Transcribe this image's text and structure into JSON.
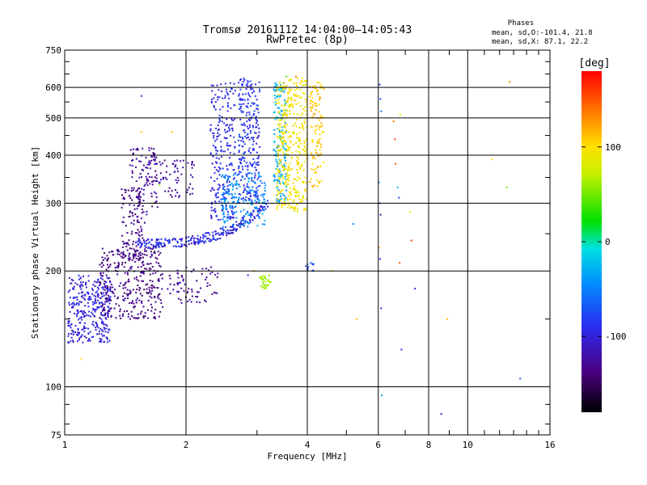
{
  "chart_data": {
    "type": "scatter",
    "title": "Tromsø 20161112 14:04:00–14:05:43",
    "subtitle": "RwPretec (8p)",
    "xlabel": "Frequency [MHz]",
    "ylabel": "Stationary phase Virtual Height [km]",
    "x_scale": "log",
    "y_scale": "log",
    "xlim": [
      1,
      16
    ],
    "ylim": [
      75,
      750
    ],
    "grid": true,
    "x_ticks": [
      {
        "value": 1,
        "label": "1"
      },
      {
        "value": 2,
        "label": "2"
      },
      {
        "value": 4,
        "label": "4"
      },
      {
        "value": 6,
        "label": "6"
      },
      {
        "value": 8,
        "label": "8"
      },
      {
        "value": 10,
        "label": "10"
      },
      {
        "value": 16,
        "label": "16"
      }
    ],
    "y_ticks": [
      {
        "value": 75,
        "label": "75"
      },
      {
        "value": 100,
        "label": "100"
      },
      {
        "value": 200,
        "label": "200"
      },
      {
        "value": 300,
        "label": "300"
      },
      {
        "value": 400,
        "label": "400"
      },
      {
        "value": 500,
        "label": "500"
      },
      {
        "value": 600,
        "label": "600"
      },
      {
        "value": 750,
        "label": "750"
      }
    ],
    "stats": {
      "header": "Phases",
      "line1": "mean, sd,O:-101.4, 21.8",
      "line2": "mean, sd,X:  87.1, 22.2"
    },
    "colorbar": {
      "label": "[deg]",
      "range": [
        -180,
        180
      ],
      "ticks": [
        {
          "value": 100,
          "label": "100"
        },
        {
          "value": 0,
          "label": "0"
        },
        {
          "value": -100,
          "label": "-100"
        }
      ]
    },
    "clusters": [
      {
        "name": "low-freq blue",
        "f": [
          1.02,
          1.3
        ],
        "h": [
          130,
          195
        ],
        "phase": [
          -120,
          -95
        ],
        "n": 320
      },
      {
        "name": "low-freq violet",
        "f": [
          1.22,
          1.75
        ],
        "h": [
          150,
          230
        ],
        "phase": [
          -150,
          -125
        ],
        "n": 330
      },
      {
        "name": "violet column",
        "f": [
          1.38,
          1.58
        ],
        "h": [
          210,
          330
        ],
        "phase": [
          -150,
          -125
        ],
        "n": 120
      },
      {
        "name": "violet column 2",
        "f": [
          1.45,
          1.7
        ],
        "h": [
          280,
          420
        ],
        "phase": [
          -145,
          -120
        ],
        "n": 90
      },
      {
        "name": "violet upper",
        "f": [
          1.55,
          2.1
        ],
        "h": [
          310,
          390
        ],
        "phase": [
          -140,
          -115
        ],
        "n": 80
      },
      {
        "name": "trace curve",
        "f": [
          1.5,
          3.2
        ],
        "h": [
          235,
          300
        ],
        "phase": [
          -125,
          -85
        ],
        "n": 260
      },
      {
        "name": "blue column 1",
        "f": [
          2.3,
          2.65
        ],
        "h": [
          270,
          620
        ],
        "phase": [
          -115,
          -90
        ],
        "n": 230
      },
      {
        "name": "blue column 2",
        "f": [
          2.7,
          3.05
        ],
        "h": [
          300,
          640
        ],
        "phase": [
          -112,
          -85
        ],
        "n": 260
      },
      {
        "name": "cyan cluster",
        "f": [
          2.45,
          3.15
        ],
        "h": [
          260,
          360
        ],
        "phase": [
          -75,
          -45
        ],
        "n": 180
      },
      {
        "name": "cyan column",
        "f": [
          3.3,
          3.55
        ],
        "h": [
          300,
          620
        ],
        "phase": [
          -65,
          -30
        ],
        "n": 150
      },
      {
        "name": "yellow column",
        "f": [
          3.35,
          4.0
        ],
        "h": [
          285,
          640
        ],
        "phase": [
          75,
          110
        ],
        "n": 380
      },
      {
        "name": "yellow-orange col",
        "f": [
          4.05,
          4.4
        ],
        "h": [
          330,
          620
        ],
        "phase": [
          90,
          125
        ],
        "n": 110
      },
      {
        "name": "green patch",
        "f": [
          3.05,
          3.25
        ],
        "h": [
          180,
          195
        ],
        "phase": [
          20,
          50
        ],
        "n": 30
      },
      {
        "name": "blue patch 4MHz",
        "f": [
          3.95,
          4.15
        ],
        "h": [
          200,
          210
        ],
        "phase": [
          -100,
          -80
        ],
        "n": 12
      },
      {
        "name": "violet lower",
        "f": [
          1.8,
          2.4
        ],
        "h": [
          165,
          205
        ],
        "phase": [
          -145,
          -120
        ],
        "n": 70
      }
    ],
    "points": [
      {
        "f": 6.05,
        "h": 610,
        "phase": -90
      },
      {
        "f": 6.07,
        "h": 560,
        "phase": -85
      },
      {
        "f": 6.1,
        "h": 520,
        "phase": -70
      },
      {
        "f": 6.02,
        "h": 340,
        "phase": -60
      },
      {
        "f": 6.05,
        "h": 300,
        "phase": -80
      },
      {
        "f": 6.08,
        "h": 280,
        "phase": -130
      },
      {
        "f": 6.03,
        "h": 230,
        "phase": 120
      },
      {
        "f": 6.06,
        "h": 215,
        "phase": -100
      },
      {
        "f": 6.1,
        "h": 160,
        "phase": -110
      },
      {
        "f": 6.12,
        "h": 95,
        "phase": -50
      },
      {
        "f": 6.55,
        "h": 490,
        "phase": 140
      },
      {
        "f": 6.6,
        "h": 440,
        "phase": 160
      },
      {
        "f": 6.62,
        "h": 380,
        "phase": 150
      },
      {
        "f": 6.7,
        "h": 330,
        "phase": -40
      },
      {
        "f": 6.75,
        "h": 310,
        "phase": -90
      },
      {
        "f": 6.8,
        "h": 510,
        "phase": 90
      },
      {
        "f": 6.78,
        "h": 210,
        "phase": 150
      },
      {
        "f": 6.85,
        "h": 125,
        "phase": -110
      },
      {
        "f": 7.2,
        "h": 285,
        "phase": 80
      },
      {
        "f": 7.25,
        "h": 240,
        "phase": 160
      },
      {
        "f": 7.4,
        "h": 180,
        "phase": -100
      },
      {
        "f": 5.2,
        "h": 265,
        "phase": -70
      },
      {
        "f": 5.3,
        "h": 150,
        "phase": 110
      },
      {
        "f": 4.6,
        "h": 200,
        "phase": 90
      },
      {
        "f": 8.6,
        "h": 85,
        "phase": -110
      },
      {
        "f": 8.9,
        "h": 150,
        "phase": 110
      },
      {
        "f": 11.5,
        "h": 390,
        "phase": 100
      },
      {
        "f": 12.5,
        "h": 330,
        "phase": 30
      },
      {
        "f": 12.7,
        "h": 620,
        "phase": 130
      },
      {
        "f": 13.5,
        "h": 105,
        "phase": -80
      },
      {
        "f": 1.55,
        "h": 570,
        "phase": -110
      },
      {
        "f": 1.85,
        "h": 460,
        "phase": 110
      },
      {
        "f": 1.55,
        "h": 460,
        "phase": 110
      },
      {
        "f": 1.65,
        "h": 300,
        "phase": 40
      },
      {
        "f": 1.72,
        "h": 335,
        "phase": 40
      },
      {
        "f": 1.1,
        "h": 118,
        "phase": 100
      },
      {
        "f": 3.55,
        "h": 640,
        "phase": 20
      },
      {
        "f": 3.75,
        "h": 640,
        "phase": 140
      },
      {
        "f": 2.85,
        "h": 195,
        "phase": -110
      },
      {
        "f": 2.95,
        "h": 200,
        "phase": 120
      }
    ]
  }
}
